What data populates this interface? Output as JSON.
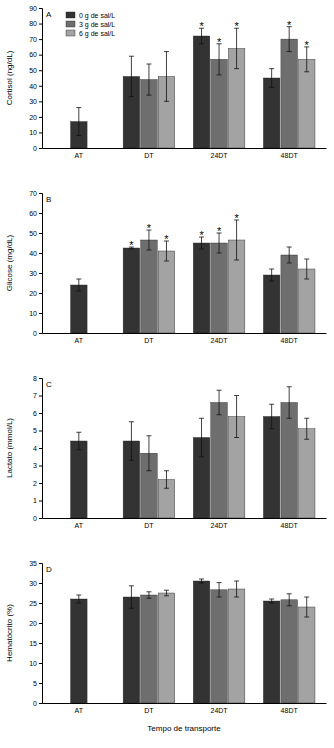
{
  "chart_data": [
    {
      "type": "bar",
      "title": "A",
      "y_label": "Cortisol (ng/dL)",
      "categories": [
        "AT",
        "DT",
        "24DT",
        "48DT"
      ],
      "series": [
        {
          "name": "0 g de sal/L",
          "color": "#333333",
          "values": [
            17,
            46,
            72,
            45
          ],
          "errors": [
            9,
            13,
            5,
            6
          ],
          "annotations": [
            null,
            null,
            "*",
            null
          ]
        },
        {
          "name": "3 g de sal/L",
          "color": "#6e6e6e",
          "values": [
            null,
            44,
            57,
            70
          ],
          "errors": [
            null,
            10,
            10,
            8
          ],
          "annotations": [
            null,
            null,
            "*",
            "*"
          ]
        },
        {
          "name": "6 g de sal/L",
          "color": "#a3a3a3",
          "values": [
            null,
            46,
            64,
            57
          ],
          "errors": [
            null,
            16,
            13,
            8
          ],
          "annotations": [
            null,
            null,
            "*",
            "*"
          ]
        }
      ],
      "ylim": [
        0,
        90
      ],
      "yticks": [
        0,
        10,
        20,
        30,
        40,
        50,
        60,
        70,
        80,
        90
      ],
      "legend": "upper left"
    },
    {
      "type": "bar",
      "title": "B",
      "y_label": "Glicose (mg/dL)",
      "categories": [
        "AT",
        "DT",
        "24DT",
        "48DT"
      ],
      "series": [
        {
          "color": "#333333",
          "values": [
            24,
            42.5,
            45,
            29
          ],
          "errors": [
            3,
            0.5,
            3,
            3
          ],
          "annotations": [
            null,
            "*",
            "*",
            null
          ]
        },
        {
          "color": "#6e6e6e",
          "values": [
            null,
            46.5,
            45,
            39
          ],
          "errors": [
            null,
            5,
            5,
            4
          ],
          "annotations": [
            null,
            "*",
            "*",
            null
          ]
        },
        {
          "color": "#a3a3a3",
          "values": [
            null,
            41,
            46.5,
            32
          ],
          "errors": [
            null,
            5,
            10,
            5
          ],
          "annotations": [
            null,
            "*",
            "*",
            null
          ]
        }
      ],
      "ylim": [
        0,
        70
      ],
      "yticks": [
        0,
        10,
        20,
        30,
        40,
        50,
        60,
        70
      ]
    },
    {
      "type": "bar",
      "title": "C",
      "y_label": "Lactato (mmol/L)",
      "categories": [
        "AT",
        "DT",
        "24DT",
        "48DT"
      ],
      "series": [
        {
          "color": "#333333",
          "values": [
            4.4,
            4.4,
            4.6,
            5.8
          ],
          "errors": [
            0.5,
            1.1,
            1.1,
            0.7
          ]
        },
        {
          "color": "#6e6e6e",
          "values": [
            null,
            3.7,
            6.6,
            6.6
          ],
          "errors": [
            null,
            1.0,
            0.7,
            0.9
          ]
        },
        {
          "color": "#a3a3a3",
          "values": [
            null,
            2.2,
            5.8,
            5.1
          ],
          "errors": [
            null,
            0.5,
            1.2,
            0.6
          ]
        }
      ],
      "ylim": [
        0,
        8
      ],
      "yticks": [
        0,
        1,
        2,
        3,
        4,
        5,
        6,
        7,
        8
      ]
    },
    {
      "type": "bar",
      "title": "D",
      "y_label": "Hematócrito (%)",
      "x_label": "Tempo de transporte",
      "categories": [
        "AT",
        "DT",
        "24DT",
        "48DT"
      ],
      "series": [
        {
          "color": "#333333",
          "values": [
            26,
            26.5,
            30.5,
            25.5
          ],
          "errors": [
            1,
            2.8,
            0.5,
            0.5
          ]
        },
        {
          "color": "#6e6e6e",
          "values": [
            null,
            27,
            28.3,
            25.8
          ],
          "errors": [
            null,
            0.8,
            1.8,
            1.5
          ]
        },
        {
          "color": "#a3a3a3",
          "values": [
            null,
            27.5,
            28.5,
            24
          ],
          "errors": [
            null,
            0.7,
            2,
            2.5
          ]
        }
      ],
      "ylim": [
        0,
        35
      ],
      "yticks": [
        0,
        5,
        10,
        15,
        20,
        25,
        30,
        35
      ]
    }
  ]
}
